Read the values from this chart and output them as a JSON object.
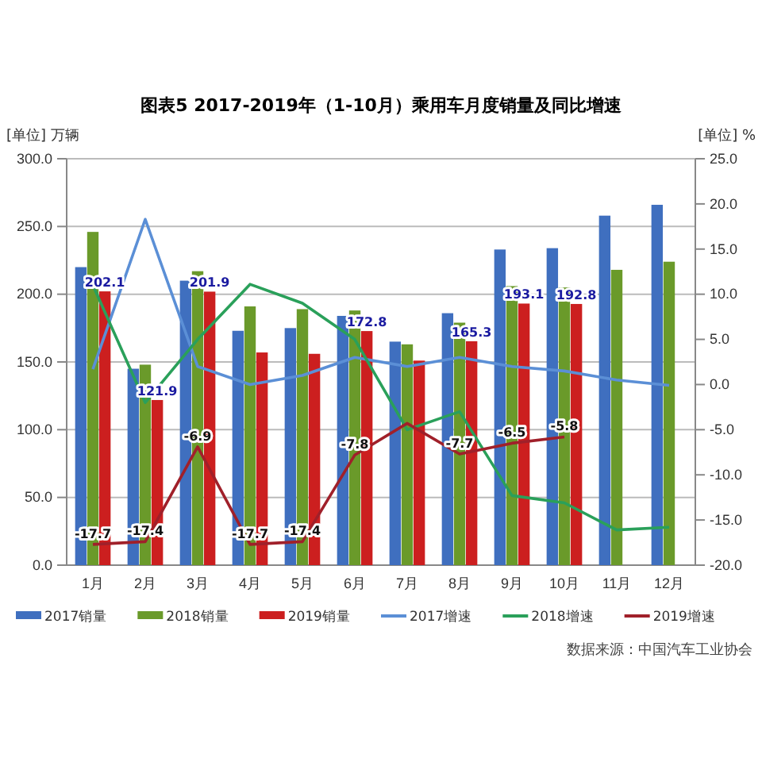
{
  "chart_data": {
    "type": "bar",
    "title": "图表5    2017-2019年（1-10月）乘用车月度销量及同比增速",
    "ylabel": "[单位] 万辆",
    "y2label": "[单位] %",
    "annotations": [
      "数据来源：中国汽车工业协会"
    ],
    "categories": [
      "1月",
      "2月",
      "3月",
      "4月",
      "5月",
      "6月",
      "7月",
      "8月",
      "9月",
      "10月",
      "11月",
      "12月"
    ],
    "series": [
      {
        "name": "2017销量",
        "color": "#3f6fbf",
        "values": [
          220,
          145,
          210,
          173,
          175,
          184,
          165,
          186,
          233,
          234,
          258,
          266
        ]
      },
      {
        "name": "2018销量",
        "color": "#6a9a2a",
        "values": [
          246,
          148,
          217,
          191,
          189,
          188,
          163,
          179,
          206,
          205,
          218,
          224
        ]
      },
      {
        "name": "2019销量",
        "color": "#cc1f1f",
        "values": [
          202.1,
          121.9,
          201.9,
          157,
          156,
          172.8,
          151,
          165.3,
          193.1,
          192.8,
          null,
          null
        ],
        "value_labels": [
          "202.1",
          "121.9",
          "201.9",
          null,
          null,
          "172.8",
          null,
          "165.3",
          "193.1",
          "192.8",
          null,
          null
        ]
      },
      {
        "name": "2017增速",
        "type": "line",
        "axis": "y2",
        "color": "#5b8fd6",
        "values": [
          1.7,
          18.3,
          2,
          0,
          1,
          3,
          2,
          3,
          2,
          1.5,
          0.5,
          -0.1
        ]
      },
      {
        "name": "2018增速",
        "type": "line",
        "axis": "y2",
        "color": "#2aa05a",
        "values": [
          11,
          -2,
          5,
          11.1,
          9,
          5,
          -5,
          -3,
          -12.3,
          -13.1,
          -16.1,
          -15.8
        ]
      },
      {
        "name": "2019增速",
        "type": "line",
        "axis": "y2",
        "color": "#a0202a",
        "values": [
          -17.7,
          -17.4,
          -6.9,
          -17.7,
          -17.4,
          -7.8,
          -4.3,
          -7.7,
          -6.5,
          -5.8,
          null,
          null
        ],
        "value_labels": [
          "-17.7",
          "-17.4",
          "-6.9",
          "-17.7",
          "-17.4",
          "-7.8",
          null,
          "-7.7",
          "-6.5",
          "-5.8",
          null,
          null
        ]
      }
    ],
    "ylim": [
      0,
      300
    ],
    "yticks": [
      {
        "value": 0,
        "label": "0.0"
      },
      {
        "value": 50,
        "label": "50.0"
      },
      {
        "value": 100,
        "label": "100.0"
      },
      {
        "value": 150,
        "label": "150.0"
      },
      {
        "value": 200,
        "label": "200.0"
      },
      {
        "value": 250,
        "label": "250.0"
      },
      {
        "value": 300,
        "label": "300.0"
      }
    ],
    "y2lim": [
      -20,
      25
    ],
    "y2ticks": [
      {
        "value": -20,
        "label": "-20.0"
      },
      {
        "value": -15,
        "label": "-15.0"
      },
      {
        "value": -10,
        "label": "-10.0"
      },
      {
        "value": -5,
        "label": "-5.0"
      },
      {
        "value": 0,
        "label": "0.0"
      },
      {
        "value": 5,
        "label": "5.0"
      },
      {
        "value": 10,
        "label": "10.0"
      },
      {
        "value": 15,
        "label": "15.0"
      },
      {
        "value": 20,
        "label": "20.0"
      },
      {
        "value": 25,
        "label": "25.0"
      }
    ],
    "grid": "y",
    "legend": "bottom",
    "marker": "none",
    "line_style": "solid"
  }
}
